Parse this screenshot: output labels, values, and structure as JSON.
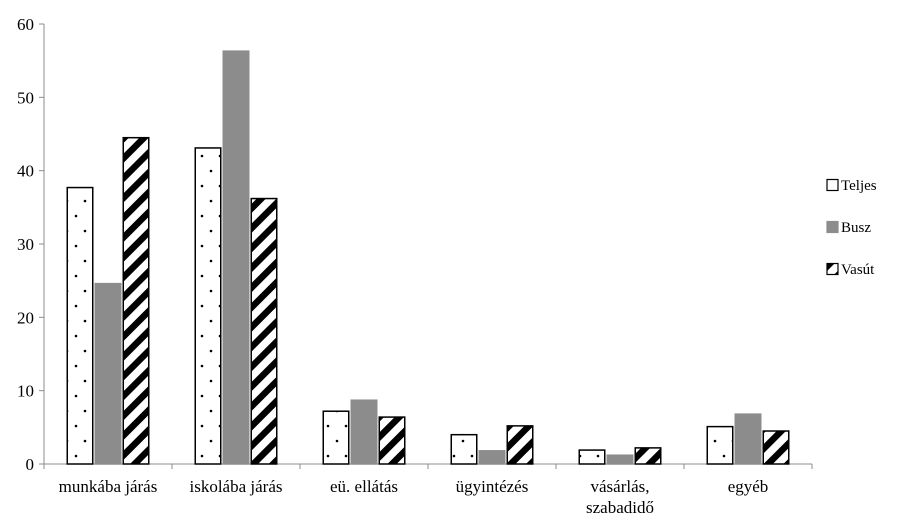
{
  "chart_data": {
    "type": "bar",
    "title": "",
    "xlabel": "",
    "ylabel": "",
    "ylim": [
      0,
      60
    ],
    "yticks": [
      0,
      10,
      20,
      30,
      40,
      50,
      60
    ],
    "grid": false,
    "legend_position": "right",
    "categories": [
      "munkába járás",
      "iskolába járás",
      "eü. ellátás",
      "ügyintézés",
      "vásárlás,\nszabadidő",
      "egyéb"
    ],
    "series": [
      {
        "name": "Teljes",
        "style": "dotted",
        "color": "#ffffff",
        "values": [
          37.8,
          43.2,
          7.3,
          4.1,
          2.0,
          5.2
        ]
      },
      {
        "name": "Busz",
        "style": "solid",
        "color": "#8c8c8c",
        "values": [
          24.7,
          56.4,
          8.8,
          1.9,
          1.3,
          6.9
        ]
      },
      {
        "name": "Vasút",
        "style": "hatched",
        "color": "#000000",
        "values": [
          44.6,
          36.3,
          6.5,
          5.3,
          2.3,
          4.6
        ]
      }
    ]
  }
}
